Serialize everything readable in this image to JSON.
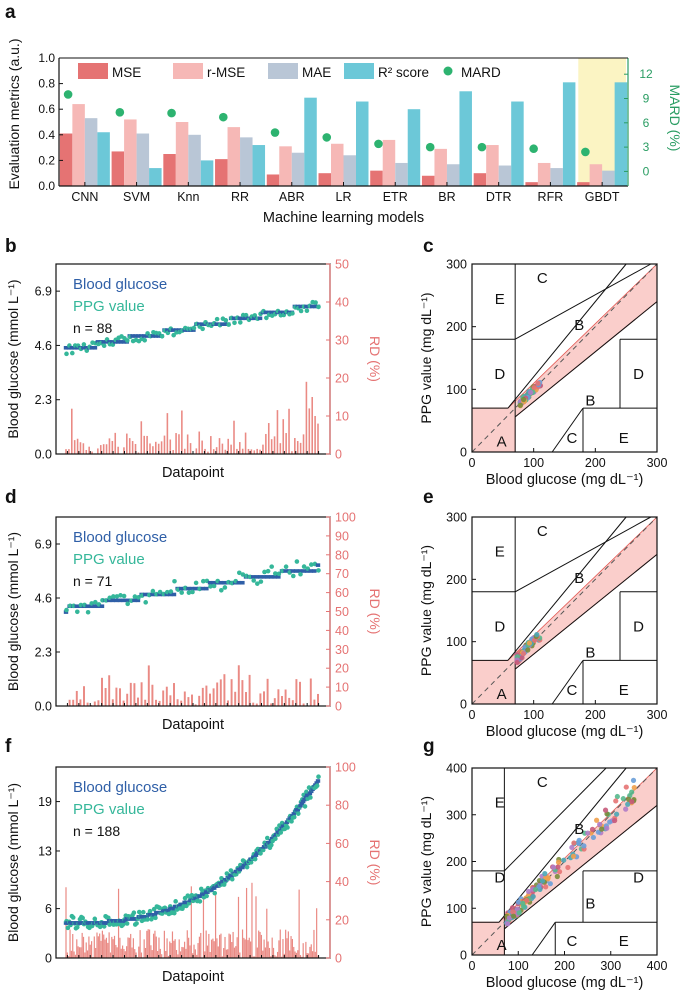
{
  "colors": {
    "mse": "#e57373",
    "rmse": "#f6b8b6",
    "mae": "#b9c6d6",
    "r2": "#6cc8d8",
    "mard": "#2db370",
    "mard_axis": "#2a9d63",
    "highlight": "#fbf4c3",
    "bg_series": "#2f5fa7",
    "ppg_series": "#35b79a",
    "rd_bars": "#ea8a84",
    "rd_axis": "#e57373",
    "zone_a": "#f5a5a0"
  },
  "chart_data": [
    {
      "panel": "a",
      "type": "bar",
      "title": "",
      "xlabel": "Machine learning models",
      "ylabel": "Evaluation metrics (a.u.)",
      "y2label": "MARD (%)",
      "ylim": [
        0,
        1.0
      ],
      "yticks": [
        "0.0",
        "0.2",
        "0.4",
        "0.6",
        "0.8",
        "1.0"
      ],
      "y2lim": [
        -1.8,
        14
      ],
      "y2ticks": [
        "0",
        "3",
        "6",
        "9",
        "12"
      ],
      "highlight_category": "GBDT",
      "categories": [
        "CNN",
        "SVM",
        "Knn",
        "RR",
        "ABR",
        "LR",
        "ETR",
        "BR",
        "DTR",
        "RFR",
        "GBDT"
      ],
      "series": [
        {
          "name": "MSE",
          "values": [
            0.41,
            0.27,
            0.25,
            0.21,
            0.09,
            0.1,
            0.12,
            0.08,
            0.1,
            0.03,
            0.03
          ]
        },
        {
          "name": "r-MSE",
          "values": [
            0.64,
            0.52,
            0.5,
            0.46,
            0.31,
            0.33,
            0.36,
            0.29,
            0.32,
            0.18,
            0.17
          ]
        },
        {
          "name": "MAE",
          "values": [
            0.53,
            0.41,
            0.4,
            0.38,
            0.26,
            0.24,
            0.18,
            0.17,
            0.16,
            0.14,
            0.12
          ]
        },
        {
          "name": "R² score",
          "values": [
            0.42,
            0.14,
            0.2,
            0.32,
            0.69,
            0.66,
            0.6,
            0.74,
            0.66,
            0.81,
            0.81
          ]
        }
      ],
      "markers": {
        "name": "MARD",
        "values": [
          9.5,
          7.3,
          7.2,
          6.7,
          4.8,
          4.2,
          3.4,
          3.0,
          3.0,
          2.8,
          2.4
        ]
      }
    },
    {
      "panel": "b",
      "type": "line",
      "xlabel": "Datapoint",
      "ylabel": "Blood glucose (mmol L⁻¹)",
      "y2label": "RD (%)",
      "ylim": [
        0,
        8.05
      ],
      "yticks": [
        "0.0",
        "2.3",
        "4.6",
        "6.9"
      ],
      "y2lim": [
        0,
        50
      ],
      "y2ticks": [
        "0",
        "10",
        "20",
        "30",
        "40",
        "50"
      ],
      "n_label": "n = 88",
      "legend": [
        "Blood glucose",
        "PPG value"
      ],
      "n": 88,
      "bg_start": 4.4,
      "bg_end": 6.3,
      "ppg_noise": 0.18,
      "ppg_bias": 0.0,
      "rd_mean": 3.5,
      "rd_max": 12,
      "rd_tail": [
        19,
        12,
        15,
        10,
        8
      ],
      "curve": 1.0,
      "seed": 7
    },
    {
      "panel": "c",
      "type": "scatter",
      "xlabel": "Blood glucose (mg dL⁻¹)",
      "ylabel": "PPG value (mg dL⁻¹)",
      "xlim": [
        0,
        300
      ],
      "ylim": [
        0,
        300
      ],
      "xticks": [
        "0",
        "100",
        "200",
        "300"
      ],
      "yticks": [
        "0",
        "100",
        "200",
        "300"
      ],
      "zones": [
        "A",
        "B",
        "B",
        "C",
        "C",
        "D",
        "D",
        "E",
        "E"
      ],
      "n": 70,
      "x_range": [
        78,
        112
      ],
      "spread": 7,
      "seed": 11
    },
    {
      "panel": "d",
      "type": "line",
      "xlabel": "Datapoint",
      "ylabel": "Blood glucose (mmol L⁻¹)",
      "y2label": "RD (%)",
      "ylim": [
        0,
        8.05
      ],
      "yticks": [
        "0.0",
        "2.3",
        "4.6",
        "6.9"
      ],
      "y2lim": [
        0,
        100
      ],
      "y2ticks": [
        "0",
        "10",
        "20",
        "30",
        "40",
        "50",
        "60",
        "70",
        "80",
        "90",
        "100"
      ],
      "n_label": "n = 71",
      "legend": [
        "Blood glucose",
        "PPG value"
      ],
      "n": 71,
      "bg_start": 4.1,
      "bg_end": 5.9,
      "ppg_noise": 0.28,
      "ppg_bias": 0.35,
      "rd_mean": 9,
      "rd_max": 22,
      "rd_tail": [],
      "curve": 1.0,
      "seed": 19
    },
    {
      "panel": "e",
      "type": "scatter",
      "xlabel": "Blood glucose (mg dL⁻¹)",
      "ylabel": "PPG value (mg dL⁻¹)",
      "xlim": [
        0,
        300
      ],
      "ylim": [
        0,
        300
      ],
      "xticks": [
        "0",
        "100",
        "200",
        "300"
      ],
      "yticks": [
        "0",
        "100",
        "200",
        "300"
      ],
      "zones": [
        "A",
        "B",
        "B",
        "C",
        "C",
        "D",
        "D",
        "E",
        "E"
      ],
      "n": 80,
      "x_range": [
        73,
        110
      ],
      "spread": 11,
      "seed": 23
    },
    {
      "panel": "f",
      "type": "line",
      "xlabel": "Datapoint",
      "ylabel": "Blood glucose (mmol L⁻¹)",
      "y2label": "RD (%)",
      "ylim": [
        0,
        23.2
      ],
      "yticks": [
        "0",
        "6",
        "13",
        "19"
      ],
      "y2lim": [
        0,
        100
      ],
      "y2ticks": [
        "0",
        "20",
        "40",
        "60",
        "80",
        "100"
      ],
      "n_label": "n = 188",
      "legend": [
        "Blood glucose",
        "PPG value"
      ],
      "n": 188,
      "bg_start": 4.2,
      "bg_end": 21.5,
      "ppg_noise": 0.7,
      "ppg_bias": 0.3,
      "rd_mean": 9,
      "rd_max": 40,
      "rd_tail": [],
      "curve": 2.6,
      "seed": 31
    },
    {
      "panel": "g",
      "type": "scatter",
      "xlabel": "Blood glucose (mg dL⁻¹)",
      "ylabel": "PPG value (mg dL⁻¹)",
      "xlim": [
        0,
        400
      ],
      "ylim": [
        0,
        400
      ],
      "xticks": [
        "0",
        "100",
        "200",
        "300",
        "400"
      ],
      "yticks": [
        "0",
        "100",
        "200",
        "300",
        "400"
      ],
      "zones": [
        "A",
        "B",
        "B",
        "C",
        "C",
        "D",
        "D",
        "E",
        "E"
      ],
      "n": 150,
      "x_range": [
        75,
        355
      ],
      "spread": 22,
      "seed": 41
    }
  ]
}
